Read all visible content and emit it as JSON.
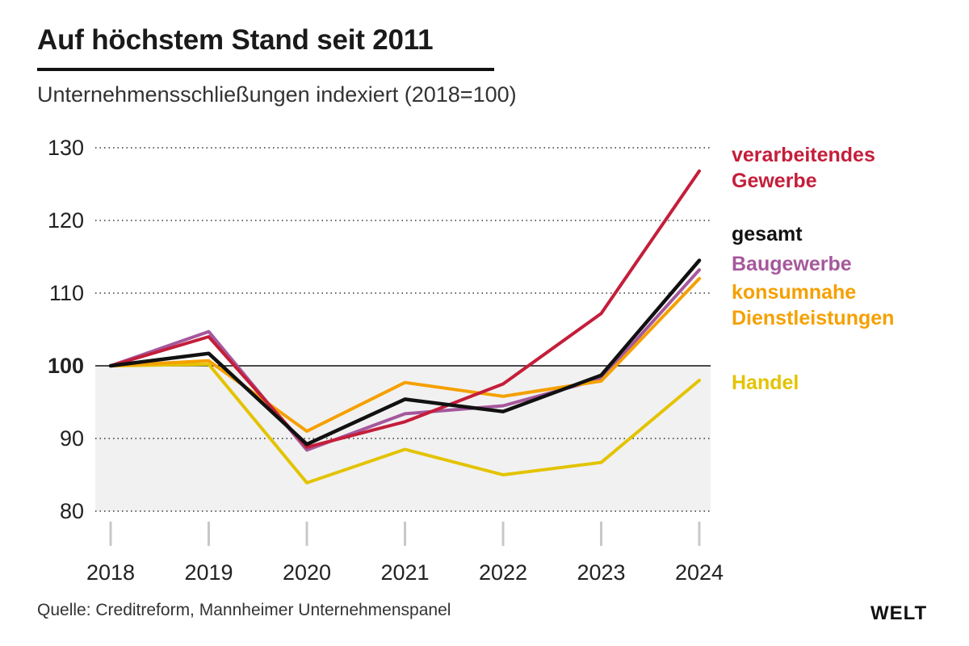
{
  "header": {
    "title": "Auf höchstem Stand seit 2011",
    "subtitle": "Unternehmensschließungen indexiert (2018=100)"
  },
  "footer": {
    "source": "Quelle: Creditreform, Mannheimer Unternehmenspanel",
    "brand": "WELT"
  },
  "chart_data": {
    "type": "line",
    "title": "Auf höchstem Stand seit 2011",
    "subtitle": "Unternehmensschließungen indexiert (2018=100)",
    "x": [
      "2018",
      "2019",
      "2020",
      "2021",
      "2022",
      "2023",
      "2024"
    ],
    "ylim": [
      80,
      130
    ],
    "yticks": [
      80,
      90,
      100,
      110,
      120,
      130
    ],
    "baseline": 100,
    "grid": true,
    "legend_placement": "right",
    "series": [
      {
        "name": "verarbeitendes Gewerbe",
        "label_lines": [
          "verarbeitendes",
          "Gewerbe"
        ],
        "color": "#c41e3a",
        "values": [
          100,
          104,
          88.8,
          92.3,
          97.5,
          107.2,
          126.8
        ]
      },
      {
        "name": "gesamt",
        "label_lines": [
          "gesamt"
        ],
        "color": "#111111",
        "values": [
          100,
          101.7,
          89.2,
          95.4,
          93.7,
          98.7,
          114.5
        ]
      },
      {
        "name": "Baugewerbe",
        "label_lines": [
          "Baugewerbe"
        ],
        "color": "#a5589c",
        "values": [
          100,
          104.7,
          88.4,
          93.4,
          94.5,
          98.2,
          113.2
        ]
      },
      {
        "name": "konsumnahe Dienstleistungen",
        "label_lines": [
          "konsumnahe",
          "Dienstleistungen"
        ],
        "color": "#f5a000",
        "values": [
          100,
          100.7,
          91,
          97.7,
          95.8,
          97.9,
          112
        ]
      },
      {
        "name": "Handel",
        "label_lines": [
          "Handel"
        ],
        "color": "#e3c300",
        "values": [
          100,
          100.2,
          83.9,
          88.5,
          85,
          86.7,
          98
        ]
      }
    ]
  }
}
